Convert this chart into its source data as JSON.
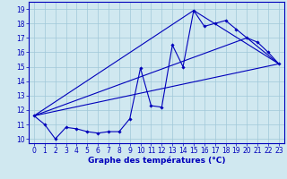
{
  "xlabel": "Graphe des températures (°C)",
  "xlim": [
    -0.5,
    23.5
  ],
  "ylim": [
    9.7,
    19.5
  ],
  "xticks": [
    0,
    1,
    2,
    3,
    4,
    5,
    6,
    7,
    8,
    9,
    10,
    11,
    12,
    13,
    14,
    15,
    16,
    17,
    18,
    19,
    20,
    21,
    22,
    23
  ],
  "yticks": [
    10,
    11,
    12,
    13,
    14,
    15,
    16,
    17,
    18,
    19
  ],
  "bg_color": "#d0e8f0",
  "grid_color": "#a0c8d8",
  "line_color": "#0000bb",
  "curve_x": [
    0,
    1,
    2,
    3,
    4,
    5,
    6,
    7,
    8,
    9,
    10,
    11,
    12,
    13,
    14,
    15,
    16,
    17,
    18,
    19,
    20,
    21,
    22,
    23
  ],
  "curve_y": [
    11.6,
    11.0,
    10.0,
    10.8,
    10.7,
    10.5,
    10.4,
    10.5,
    10.5,
    11.4,
    14.9,
    12.3,
    12.2,
    16.5,
    15.0,
    18.9,
    17.8,
    18.0,
    18.2,
    17.6,
    17.0,
    16.7,
    16.0,
    15.2
  ],
  "straight_lines": [
    {
      "x": [
        0,
        23
      ],
      "y": [
        11.6,
        15.2
      ]
    },
    {
      "x": [
        0,
        15,
        23
      ],
      "y": [
        11.6,
        18.9,
        15.2
      ]
    },
    {
      "x": [
        0,
        20,
        23
      ],
      "y": [
        11.6,
        17.0,
        15.2
      ]
    }
  ],
  "tick_fontsize": 5.5,
  "xlabel_fontsize": 6.5
}
